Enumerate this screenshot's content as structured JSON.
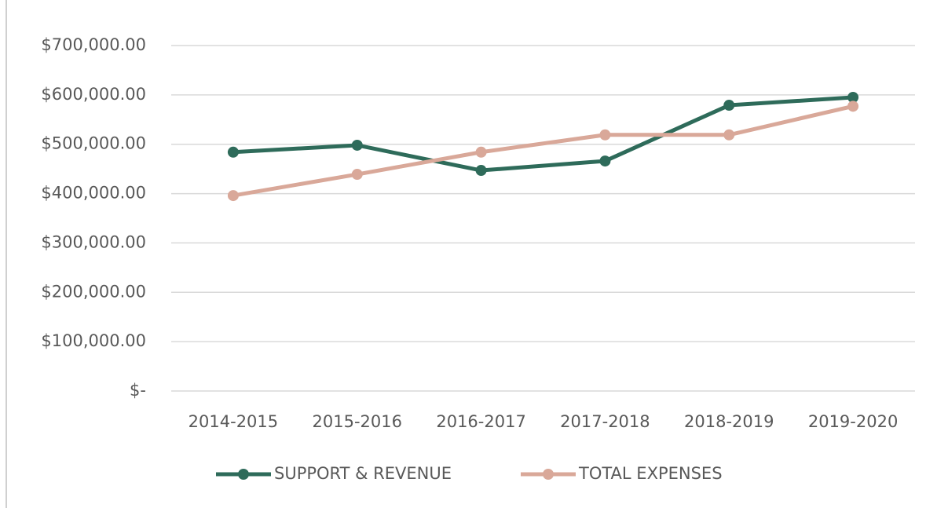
{
  "chart_data": {
    "type": "line",
    "categories": [
      "2014-2015",
      "2015-2016",
      "2016-2017",
      "2017-2018",
      "2018-2019",
      "2019-2020"
    ],
    "series": [
      {
        "name": "SUPPORT & REVENUE",
        "color": "#2e6b5a",
        "values": [
          484000,
          498000,
          447000,
          466000,
          579000,
          595000
        ]
      },
      {
        "name": "TOTAL EXPENSES",
        "color": "#d9a899",
        "values": [
          396000,
          439000,
          484000,
          519000,
          519000,
          577000
        ]
      }
    ],
    "ylim": [
      0,
      700000
    ],
    "yticks": [
      {
        "value": 0,
        "label": "$-"
      },
      {
        "value": 100000,
        "label": "$100,000.00"
      },
      {
        "value": 200000,
        "label": "$200,000.00"
      },
      {
        "value": 300000,
        "label": "$300,000.00"
      },
      {
        "value": 400000,
        "label": "$400,000.00"
      },
      {
        "value": 500000,
        "label": "$500,000.00"
      },
      {
        "value": 600000,
        "label": "$600,000.00"
      },
      {
        "value": 700000,
        "label": "$700,000.00"
      }
    ],
    "grid": true
  }
}
